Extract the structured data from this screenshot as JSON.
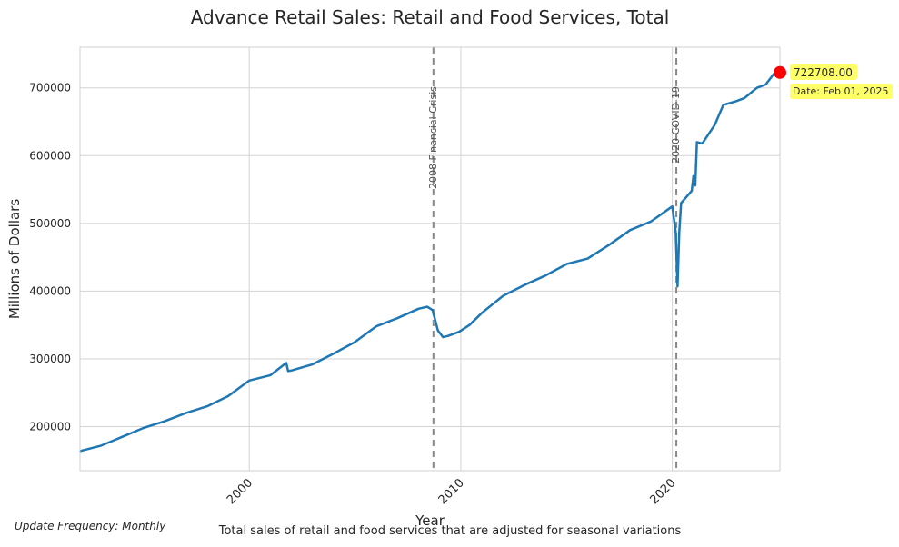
{
  "chart_data": {
    "type": "line",
    "title": "Advance Retail Sales: Retail and Food Services, Total",
    "xlabel": "Year",
    "ylabel": "Millions of Dollars",
    "xlim": [
      "1992-01-01",
      "2025-02-01"
    ],
    "ylim": [
      135000,
      760000
    ],
    "x_ticks": [
      "2000",
      "2010",
      "2020"
    ],
    "y_ticks": [
      "200000",
      "300000",
      "400000",
      "500000",
      "600000",
      "700000"
    ],
    "grid": true,
    "colors": {
      "line": "#1f77b4",
      "marker": "#ff0000",
      "vline": "#888888",
      "label_bg": "#ffff66"
    },
    "series": [
      {
        "points": [
          [
            "1992-01-01",
            164000
          ],
          [
            "1993-01-01",
            172000
          ],
          [
            "1994-01-01",
            185000
          ],
          [
            "1995-01-01",
            198000
          ],
          [
            "1996-01-01",
            208000
          ],
          [
            "1997-01-01",
            220000
          ],
          [
            "1998-01-01",
            230000
          ],
          [
            "1999-01-01",
            245000
          ],
          [
            "2000-01-01",
            268000
          ],
          [
            "2001-01-01",
            276000
          ],
          [
            "2001-10-01",
            294000
          ],
          [
            "2001-11-01",
            282000
          ],
          [
            "2002-01-01",
            283000
          ],
          [
            "2003-01-01",
            292000
          ],
          [
            "2004-01-01",
            308000
          ],
          [
            "2005-01-01",
            325000
          ],
          [
            "2006-01-01",
            348000
          ],
          [
            "2007-01-01",
            360000
          ],
          [
            "2008-01-01",
            374000
          ],
          [
            "2008-06-01",
            377000
          ],
          [
            "2008-09-01",
            372000
          ],
          [
            "2008-12-01",
            342000
          ],
          [
            "2009-03-01",
            332000
          ],
          [
            "2009-06-01",
            334000
          ],
          [
            "2009-12-01",
            340000
          ],
          [
            "2010-06-01",
            350000
          ],
          [
            "2011-01-01",
            368000
          ],
          [
            "2012-01-01",
            393000
          ],
          [
            "2013-01-01",
            409000
          ],
          [
            "2014-01-01",
            423000
          ],
          [
            "2015-01-01",
            440000
          ],
          [
            "2016-01-01",
            448000
          ],
          [
            "2017-01-01",
            468000
          ],
          [
            "2018-01-01",
            490000
          ],
          [
            "2019-01-01",
            503000
          ],
          [
            "2020-01-01",
            525000
          ],
          [
            "2020-03-01",
            487000
          ],
          [
            "2020-04-01",
            407000
          ],
          [
            "2020-05-01",
            487000
          ],
          [
            "2020-06-01",
            530000
          ],
          [
            "2020-12-01",
            548000
          ],
          [
            "2021-01-01",
            570000
          ],
          [
            "2021-02-01",
            556000
          ],
          [
            "2021-03-01",
            620000
          ],
          [
            "2021-06-01",
            618000
          ],
          [
            "2022-01-01",
            645000
          ],
          [
            "2022-06-01",
            675000
          ],
          [
            "2023-01-01",
            680000
          ],
          [
            "2023-06-01",
            685000
          ],
          [
            "2024-01-01",
            700000
          ],
          [
            "2024-06-01",
            705000
          ],
          [
            "2025-01-01",
            729000
          ],
          [
            "2025-02-01",
            722708
          ]
        ]
      }
    ],
    "events": [
      {
        "date": "2008-09-15",
        "label": "2008 Financial Crisis"
      },
      {
        "date": "2020-03-11",
        "label": "2020 COVID-19"
      }
    ],
    "last_point": {
      "value": "722708.00",
      "date_label": "Date: Feb 01, 2025"
    }
  },
  "footer": {
    "frequency": "Update Frequency: Monthly",
    "description": "Total sales of retail and food services that are adjusted for seasonal variations"
  }
}
